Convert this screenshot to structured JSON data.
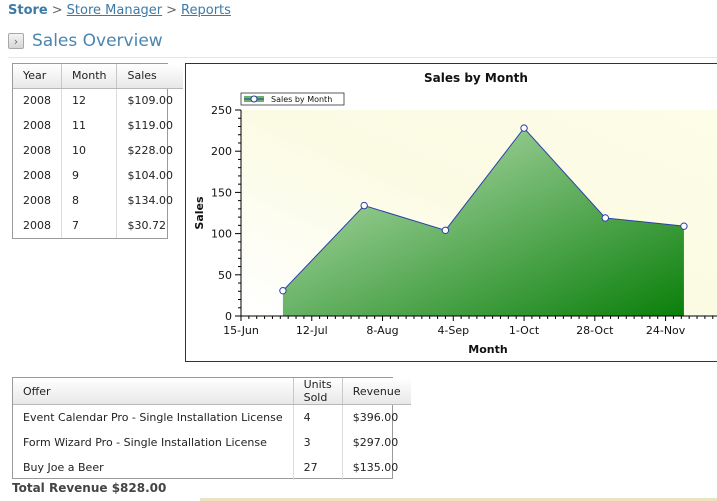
{
  "breadcrumb": {
    "store": "Store",
    "store_manager": "Store Manager",
    "reports": "Reports",
    "separator": ">"
  },
  "page_title": "Sales Overview",
  "monthly_table": {
    "headers": [
      "Year",
      "Month",
      "Sales"
    ],
    "rows": [
      [
        "2008",
        "12",
        "$109.00"
      ],
      [
        "2008",
        "11",
        "$119.00"
      ],
      [
        "2008",
        "10",
        "$228.00"
      ],
      [
        "2008",
        "9",
        "$104.00"
      ],
      [
        "2008",
        "8",
        "$134.00"
      ],
      [
        "2008",
        "7",
        "$30.72"
      ]
    ]
  },
  "offers_table": {
    "headers": [
      "Offer",
      "Units Sold",
      "Revenue"
    ],
    "rows": [
      [
        "Event Calendar Pro - Single Installation License",
        "4",
        "$396.00"
      ],
      [
        "Form Wizard Pro - Single Installation License",
        "3",
        "$297.00"
      ],
      [
        "Buy Joe a Beer",
        "27",
        "$135.00"
      ]
    ]
  },
  "total_revenue": "Total Revenue $828.00",
  "chart_data": {
    "type": "area",
    "title": "Sales by Month",
    "xlabel": "Month",
    "ylabel": "Sales",
    "x_ticks": [
      "15-Jun",
      "12-Jul",
      "8-Aug",
      "4-Sep",
      "1-Oct",
      "28-Oct",
      "24-Nov"
    ],
    "x_range": [
      "2008-06-15",
      "2008-12-14"
    ],
    "ylim": [
      0,
      250
    ],
    "y_ticks": [
      0,
      50,
      100,
      150,
      200,
      250
    ],
    "legend_position": "top-left",
    "grid": false,
    "series": [
      {
        "name": "Sales by Month",
        "x": [
          "2008-07-01",
          "2008-08-01",
          "2008-09-01",
          "2008-10-01",
          "2008-11-01",
          "2008-12-01"
        ],
        "values": [
          30.72,
          134,
          104,
          228,
          119,
          109
        ],
        "line_color": "#2b3fa8",
        "fill_colors": [
          "#c6e6c0",
          "#0a7f0a"
        ]
      }
    ]
  }
}
